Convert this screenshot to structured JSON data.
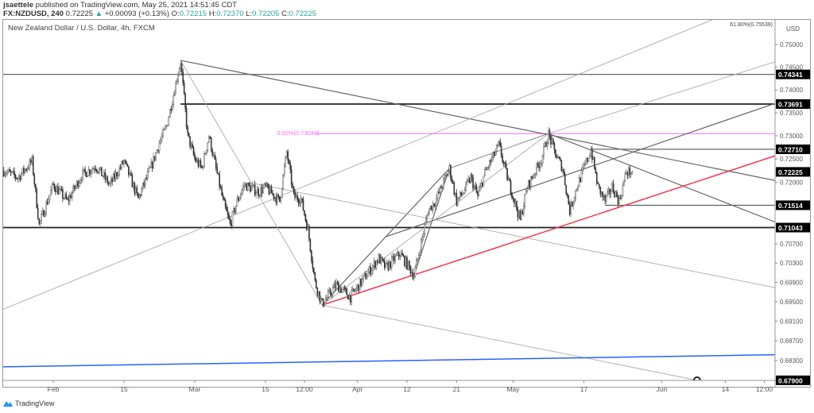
{
  "header": {
    "author": "jsaettele",
    "published_text": "published on TradingView.com, May 25, 2021 14:51:45 CDT",
    "symbol": "FX:NZDUSD, 240",
    "last": "0.72225",
    "change": "+0.00093 (+0.13%)",
    "o_label": "O:",
    "o": "0.72215",
    "h_label": "H:",
    "h": "0.72370",
    "l_label": "L:",
    "l": "0.72205",
    "c_label": "C:",
    "c": "0.72225",
    "up_icon": "triangle-up-icon"
  },
  "legend": "New Zealand Dollar / U.S. Dollar, 4h, FXCM",
  "footer": {
    "brand": "TradingView",
    "logo_icon": "tradingview-logo-icon"
  },
  "colors": {
    "candles": "#4a4a4a",
    "red_trendline": "#f23645",
    "blue_trendline": "#2962ff",
    "fib_level": "#ff66ff",
    "badge_bg": "#000000",
    "price_up": "#26a69a"
  },
  "chart_data": {
    "type": "ohlc-candlestick",
    "symbol": "NZDUSD",
    "timeframe": "4h",
    "y_scale": "log",
    "currency_label": "USD",
    "ylim": [
      0.679,
      0.7555
    ],
    "y_ticks": [
      "0.75000",
      "0.74500",
      "0.74000",
      "0.73500",
      "0.73000",
      "0.72500",
      "0.72000",
      "0.70700",
      "0.70300",
      "0.69900",
      "0.69500",
      "0.69100",
      "0.68700",
      "0.68300"
    ],
    "x_ticks": [
      {
        "label": "Feb",
        "date": "2021-02-01"
      },
      {
        "label": "15",
        "date": "2021-02-15"
      },
      {
        "label": "Mar",
        "date": "2021-03-01"
      },
      {
        "label": "15",
        "date": "2021-03-15"
      },
      {
        "label": "12:00",
        "date": "2021-03-22"
      },
      {
        "label": "Apr",
        "date": "2021-04-01"
      },
      {
        "label": "12",
        "date": "2021-04-12"
      },
      {
        "label": "21",
        "date": "2021-04-21"
      },
      {
        "label": "May",
        "date": "2021-05-03"
      },
      {
        "label": "17",
        "date": "2021-05-17"
      },
      {
        "label": "Jun",
        "date": "2021-06-01"
      },
      {
        "label": "14",
        "date": "2021-06-14"
      },
      {
        "label": "12:00",
        "date": "2021-06-21"
      }
    ],
    "price_badges": [
      "0.74341",
      "0.73691",
      "0.72710",
      "0.72225",
      "0.71514",
      "0.71043",
      "0.67900"
    ],
    "price_path": [
      [
        "2021-01-21",
        0.7225
      ],
      [
        "2021-01-25",
        0.721
      ],
      [
        "2021-01-27",
        0.7245
      ],
      [
        "2021-01-28",
        0.711
      ],
      [
        "2021-02-01",
        0.7195
      ],
      [
        "2021-02-03",
        0.716
      ],
      [
        "2021-02-05",
        0.7215
      ],
      [
        "2021-02-09",
        0.7235
      ],
      [
        "2021-02-11",
        0.7195
      ],
      [
        "2021-02-15",
        0.7245
      ],
      [
        "2021-02-17",
        0.7165
      ],
      [
        "2021-02-19",
        0.724
      ],
      [
        "2021-02-22",
        0.7285
      ],
      [
        "2021-02-23",
        0.732
      ],
      [
        "2021-02-24",
        0.739
      ],
      [
        "2021-02-25",
        0.7463
      ],
      [
        "2021-02-26",
        0.73
      ],
      [
        "2021-03-01",
        0.725
      ],
      [
        "2021-03-02",
        0.723
      ],
      [
        "2021-03-03",
        0.73
      ],
      [
        "2021-03-04",
        0.723
      ],
      [
        "2021-03-05",
        0.716
      ],
      [
        "2021-03-08",
        0.711
      ],
      [
        "2021-03-09",
        0.716
      ],
      [
        "2021-03-10",
        0.7195
      ],
      [
        "2021-03-12",
        0.718
      ],
      [
        "2021-03-15",
        0.719
      ],
      [
        "2021-03-17",
        0.716
      ],
      [
        "2021-03-18",
        0.7265
      ],
      [
        "2021-03-19",
        0.717
      ],
      [
        "2021-03-22",
        0.7165
      ],
      [
        "2021-03-23",
        0.71
      ],
      [
        "2021-03-24",
        0.699
      ],
      [
        "2021-03-25",
        0.6945
      ],
      [
        "2021-03-29",
        0.6985
      ],
      [
        "2021-03-31",
        0.696
      ],
      [
        "2021-04-06",
        0.704
      ],
      [
        "2021-04-07",
        0.702
      ],
      [
        "2021-04-09",
        0.705
      ],
      [
        "2021-04-13",
        0.7005
      ],
      [
        "2021-04-15",
        0.714
      ],
      [
        "2021-04-16",
        0.716
      ],
      [
        "2021-04-20",
        0.723
      ],
      [
        "2021-04-21",
        0.716
      ],
      [
        "2021-04-22",
        0.718
      ],
      [
        "2021-04-23",
        0.721
      ],
      [
        "2021-04-26",
        0.717
      ],
      [
        "2021-04-27",
        0.722
      ],
      [
        "2021-04-29",
        0.728
      ],
      [
        "2021-04-30",
        0.722
      ],
      [
        "2021-05-03",
        0.717
      ],
      [
        "2021-05-04",
        0.712
      ],
      [
        "2021-05-05",
        0.719
      ],
      [
        "2021-05-07",
        0.725
      ],
      [
        "2021-05-10",
        0.7303
      ],
      [
        "2021-05-11",
        0.726
      ],
      [
        "2021-05-12",
        0.723
      ],
      [
        "2021-05-13",
        0.714
      ],
      [
        "2021-05-14",
        0.719
      ],
      [
        "2021-05-17",
        0.723
      ],
      [
        "2021-05-18",
        0.727
      ],
      [
        "2021-05-19",
        0.719
      ],
      [
        "2021-05-20",
        0.716
      ],
      [
        "2021-05-21",
        0.719
      ],
      [
        "2021-05-24",
        0.716
      ],
      [
        "2021-05-25",
        0.72225
      ]
    ],
    "horizontal_levels": [
      {
        "price": 0.74341,
        "from": null,
        "style": "thin-dark"
      },
      {
        "price": 0.73691,
        "from": "2021-02-25",
        "style": "thick-dark"
      },
      {
        "price": 0.73049,
        "from": "2021-03-24",
        "style": "fib",
        "label": "0.00%(0.73049)"
      },
      {
        "price": 0.7271,
        "from": "2021-05-18",
        "style": "thin-dark"
      },
      {
        "price": 0.71514,
        "from": "2021-05-20",
        "style": "thin-dark"
      },
      {
        "price": 0.71043,
        "from": null,
        "style": "thick-dark"
      }
    ],
    "fib_top_label": "61.80%(0.75539)",
    "trendlines": [
      {
        "a": [
          "2021-02-25",
          0.7465
        ],
        "b": [
          "2021-04-30",
          0.7321
        ],
        "extend": true,
        "style": "dark"
      },
      {
        "a": [
          "2021-05-10",
          0.7305
        ],
        "b": [
          "2021-06-01",
          0.721
        ],
        "extend": true,
        "style": "dark"
      },
      {
        "a": [
          "2021-04-07",
          0.7085
        ],
        "b": [
          "2021-04-30",
          0.7172
        ],
        "extend": true,
        "style": "dark"
      },
      {
        "a": [
          "2021-03-25",
          0.6943
        ],
        "b": [
          "2021-04-20",
          0.723
        ],
        "extend": false,
        "style": "dark"
      },
      {
        "a": [
          "2021-04-20",
          0.723
        ],
        "b": [
          "2021-05-10",
          0.7305
        ],
        "extend": false,
        "style": "mid"
      },
      {
        "a": [
          "2021-04-13",
          0.7005
        ],
        "b": [
          "2021-04-20",
          0.723
        ],
        "extend": false,
        "style": "dark"
      },
      {
        "a": [
          "2021-03-25",
          0.6943
        ],
        "b": [
          "2021-05-10",
          0.7305
        ],
        "extend": false,
        "style": "light"
      },
      {
        "a": [
          "2021-05-10",
          0.7305
        ],
        "b": [
          "2021-06-01",
          0.7383
        ],
        "extend": true,
        "style": "light"
      },
      {
        "a": [
          "2021-01-20",
          0.6929
        ],
        "b": [
          "2021-03-01",
          0.7097
        ],
        "extend": true,
        "style": "light"
      },
      {
        "a": [
          "2021-02-25",
          0.7465
        ],
        "b": [
          "2021-03-25",
          0.6943
        ],
        "extend": false,
        "style": "light"
      },
      {
        "a": [
          "2021-03-25",
          0.6943
        ],
        "b": [
          "2021-06-08",
          0.679
        ],
        "extend": false,
        "style": "light"
      },
      {
        "a": [
          "2021-03-11",
          0.7199
        ],
        "b": [
          "2021-06-01",
          0.7026
        ],
        "extend": true,
        "style": "light"
      },
      {
        "a": [
          "2021-03-25",
          0.6943
        ],
        "b": [
          "2021-06-01",
          0.7177
        ],
        "extend": true,
        "style": "red"
      },
      {
        "a": [
          "2021-01-20",
          0.6817
        ],
        "b": [
          "2021-06-01",
          0.6838
        ],
        "extend": true,
        "style": "blue"
      }
    ],
    "marker": {
      "date": "2021-06-08",
      "price": 0.679,
      "shape": "circle"
    }
  }
}
